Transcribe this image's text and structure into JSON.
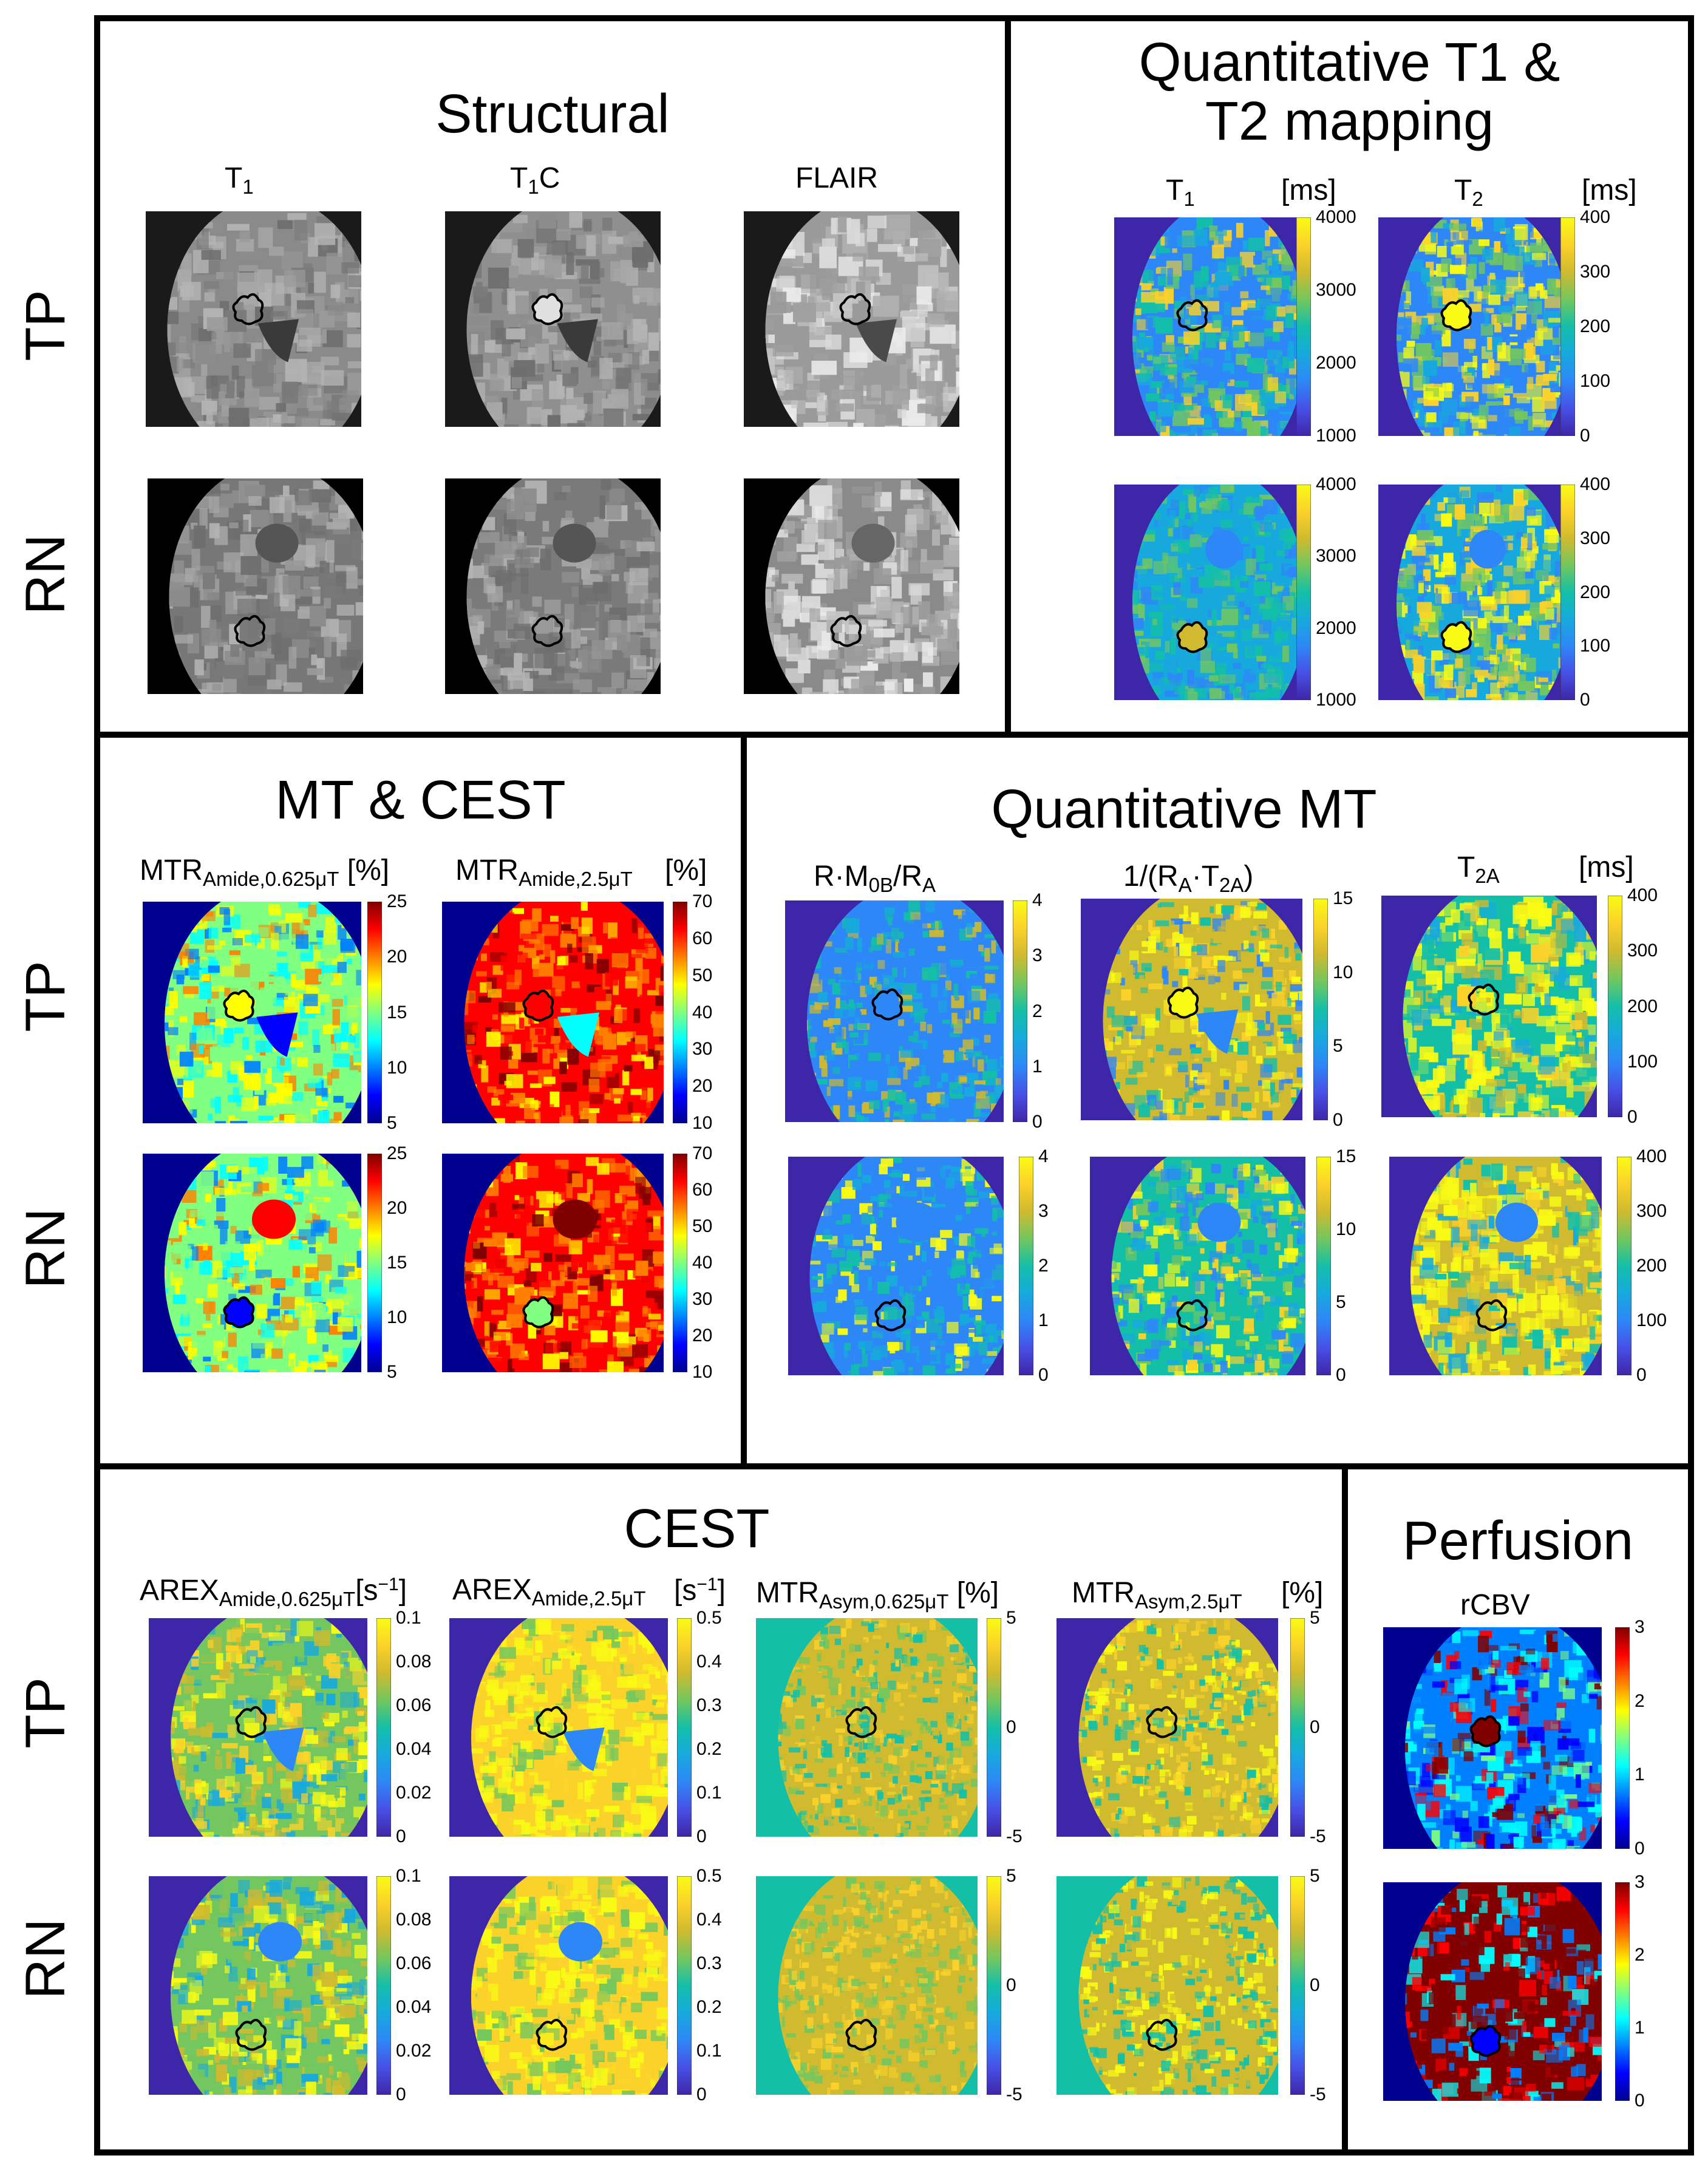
{
  "row_labels": {
    "tp": "TP",
    "rn": "RN"
  },
  "structural": {
    "title": "Structural",
    "col1": {
      "main": "T",
      "sub": "1",
      "tail": ""
    },
    "col2": {
      "main": "T",
      "sub": "1",
      "tail": "C"
    },
    "col3": {
      "main": "FLAIR",
      "sub": "",
      "tail": ""
    }
  },
  "qt": {
    "title_line1": "Quantitative T1 &",
    "title_line2": "T2 mapping",
    "t1": {
      "main": "T",
      "sub": "1",
      "unit": "[ms]",
      "ticks": [
        "4000",
        "3000",
        "2000",
        "1000"
      ]
    },
    "t2": {
      "main": "T",
      "sub": "2",
      "unit": "[ms]",
      "ticks": [
        "400",
        "300",
        "200",
        "100",
        "0"
      ]
    }
  },
  "mtcest": {
    "title": "MT & CEST",
    "a": {
      "main": "MTR",
      "sub": "Amide,0.625μT",
      "unit": "[%]",
      "ticks": [
        "25",
        "20",
        "15",
        "10",
        "5"
      ]
    },
    "b": {
      "main": "MTR",
      "sub": "Amide,2.5μT",
      "unit": "[%]",
      "ticks": [
        "70",
        "60",
        "50",
        "40",
        "30",
        "20",
        "10"
      ]
    }
  },
  "qmt": {
    "title": "Quantitative MT",
    "a": {
      "m1": "R·M",
      "s1": "0B",
      "m2": "/R",
      "s2": "A",
      "ticks": [
        "4",
        "3",
        "2",
        "1",
        "0"
      ]
    },
    "b": {
      "m1": "1/(R",
      "s1": "A",
      "m2": "·T",
      "s2": "2A",
      "m3": ")",
      "ticks": [
        "15",
        "10",
        "5",
        "0"
      ]
    },
    "c": {
      "main": "T",
      "sub": "2A",
      "unit": "[ms]",
      "ticks": [
        "400",
        "300",
        "200",
        "100",
        "0"
      ]
    }
  },
  "cest": {
    "title": "CEST",
    "a": {
      "main": "AREX",
      "sub": "Amide,0.625μT",
      "unit_pre": "[s",
      "unit_sup": "−1",
      "unit_post": "]",
      "ticks": [
        "0.1",
        "0.08",
        "0.06",
        "0.04",
        "0.02",
        "0"
      ]
    },
    "b": {
      "main": "AREX",
      "sub": "Amide,2.5μT",
      "unit_pre": "[s",
      "unit_sup": "−1",
      "unit_post": "]",
      "ticks": [
        "0.5",
        "0.4",
        "0.3",
        "0.2",
        "0.1",
        "0"
      ]
    },
    "c": {
      "main": "MTR",
      "sub": "Asym,0.625μT",
      "unit": "[%]",
      "ticks": [
        "5",
        "0",
        "-5"
      ]
    },
    "d": {
      "main": "MTR",
      "sub": "Asym,2.5μT",
      "unit": "[%]",
      "ticks": [
        "5",
        "0",
        "-5"
      ]
    }
  },
  "perfusion": {
    "title": "Perfusion",
    "col": "rCBV",
    "ticks": [
      "3",
      "2",
      "1",
      "0"
    ]
  },
  "colors": {
    "parula": [
      "#3e26a8",
      "#4750e6",
      "#2e87f7",
      "#17a9dd",
      "#14bfa8",
      "#73c75e",
      "#d0ba2f",
      "#fbd22a",
      "#f9fb15"
    ],
    "jet": [
      "#00008f",
      "#0000ff",
      "#0080ff",
      "#00ffff",
      "#80ff80",
      "#ffff00",
      "#ff8000",
      "#ff0000",
      "#800000"
    ],
    "roi": "#000000"
  }
}
